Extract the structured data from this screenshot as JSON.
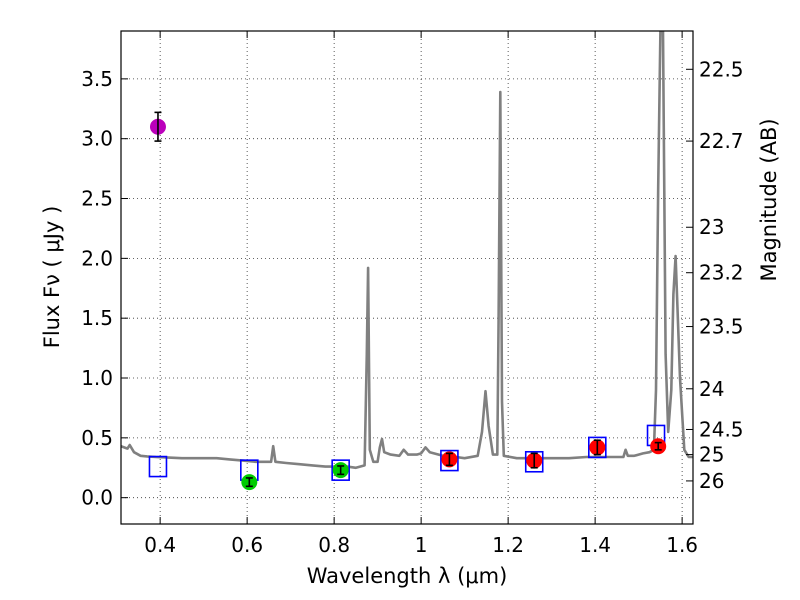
{
  "chart_data": {
    "type": "scatter",
    "title": "",
    "xlabel": "Wavelength  λ (μm)",
    "ylabel": "Flux  Fν  ( μJy )",
    "ylabel_right": "Magnitude (AB)",
    "xlim": [
      0.31,
      1.625
    ],
    "ylim": [
      -0.22,
      3.9
    ],
    "grid": true,
    "x_ticks": [
      0.4,
      0.6,
      0.8,
      1.0,
      1.2,
      1.4,
      1.6
    ],
    "x_tick_labels": [
      "0.4",
      "0.6",
      "0.8",
      "1",
      "1.2",
      "1.4",
      "1.6"
    ],
    "y_ticks": [
      0.0,
      0.5,
      1.0,
      1.5,
      2.0,
      2.5,
      3.0,
      3.5
    ],
    "y_tick_labels": [
      "0.0",
      "0.5",
      "1.0",
      "1.5",
      "2.0",
      "2.5",
      "3.0",
      "3.5"
    ],
    "right_ticks": [
      {
        "label": "22.5",
        "flux": 3.58
      },
      {
        "label": "22.7",
        "flux": 2.98
      },
      {
        "label": "23",
        "flux": 2.26
      },
      {
        "label": "23.2",
        "flux": 1.88
      },
      {
        "label": "23.5",
        "flux": 1.43
      },
      {
        "label": "24",
        "flux": 0.91
      },
      {
        "label": "24.5",
        "flux": 0.57
      },
      {
        "label": "25",
        "flux": 0.36
      },
      {
        "label": "26",
        "flux": 0.14
      }
    ],
    "series": [
      {
        "name": "observed photometry",
        "points": [
          {
            "x": 0.395,
            "y": 3.1,
            "err": 0.12,
            "color": "#bb00bb"
          },
          {
            "x": 0.605,
            "y": 0.13,
            "err": 0.035,
            "color": "#00cc00"
          },
          {
            "x": 0.815,
            "y": 0.23,
            "err": 0.035,
            "color": "#00cc00"
          },
          {
            "x": 1.065,
            "y": 0.32,
            "err": 0.05,
            "color": "#ff0000"
          },
          {
            "x": 1.26,
            "y": 0.31,
            "err": 0.06,
            "color": "#ff0000"
          },
          {
            "x": 1.405,
            "y": 0.42,
            "err": 0.06,
            "color": "#ff0000"
          },
          {
            "x": 1.545,
            "y": 0.43,
            "err": 0.03,
            "color": "#ff0000"
          }
        ]
      },
      {
        "name": "model photometry",
        "points": [
          {
            "x": 0.395,
            "y": 0.26
          },
          {
            "x": 0.605,
            "y": 0.23
          },
          {
            "x": 0.815,
            "y": 0.23
          },
          {
            "x": 1.065,
            "y": 0.31
          },
          {
            "x": 1.26,
            "y": 0.3
          },
          {
            "x": 1.405,
            "y": 0.42
          },
          {
            "x": 1.54,
            "y": 0.52
          }
        ]
      },
      {
        "name": "model spectrum",
        "color": "#808080",
        "points": [
          [
            0.31,
            0.43
          ],
          [
            0.325,
            0.41
          ],
          [
            0.33,
            0.44
          ],
          [
            0.34,
            0.38
          ],
          [
            0.355,
            0.35
          ],
          [
            0.37,
            0.345
          ],
          [
            0.39,
            0.34
          ],
          [
            0.42,
            0.335
          ],
          [
            0.45,
            0.33
          ],
          [
            0.48,
            0.33
          ],
          [
            0.5,
            0.33
          ],
          [
            0.53,
            0.33
          ],
          [
            0.56,
            0.32
          ],
          [
            0.59,
            0.31
          ],
          [
            0.62,
            0.3
          ],
          [
            0.65,
            0.3
          ],
          [
            0.655,
            0.3
          ],
          [
            0.66,
            0.43
          ],
          [
            0.665,
            0.3
          ],
          [
            0.69,
            0.29
          ],
          [
            0.72,
            0.28
          ],
          [
            0.75,
            0.27
          ],
          [
            0.78,
            0.26
          ],
          [
            0.8,
            0.26
          ],
          [
            0.83,
            0.26
          ],
          [
            0.85,
            0.25
          ],
          [
            0.87,
            0.27
          ],
          [
            0.875,
            1.2
          ],
          [
            0.878,
            1.92
          ],
          [
            0.882,
            0.4
          ],
          [
            0.89,
            0.3
          ],
          [
            0.9,
            0.3
          ],
          [
            0.905,
            0.42
          ],
          [
            0.91,
            0.49
          ],
          [
            0.915,
            0.38
          ],
          [
            0.93,
            0.36
          ],
          [
            0.95,
            0.35
          ],
          [
            0.96,
            0.4
          ],
          [
            0.97,
            0.36
          ],
          [
            0.99,
            0.36
          ],
          [
            1.0,
            0.37
          ],
          [
            1.01,
            0.42
          ],
          [
            1.02,
            0.38
          ],
          [
            1.05,
            0.35
          ],
          [
            1.08,
            0.34
          ],
          [
            1.1,
            0.33
          ],
          [
            1.13,
            0.35
          ],
          [
            1.14,
            0.55
          ],
          [
            1.148,
            0.89
          ],
          [
            1.155,
            0.6
          ],
          [
            1.165,
            0.36
          ],
          [
            1.175,
            0.36
          ],
          [
            1.178,
            1.5
          ],
          [
            1.182,
            3.39
          ],
          [
            1.186,
            0.8
          ],
          [
            1.19,
            0.35
          ],
          [
            1.22,
            0.33
          ],
          [
            1.25,
            0.33
          ],
          [
            1.3,
            0.33
          ],
          [
            1.34,
            0.33
          ],
          [
            1.38,
            0.34
          ],
          [
            1.42,
            0.34
          ],
          [
            1.45,
            0.34
          ],
          [
            1.465,
            0.34
          ],
          [
            1.47,
            0.4
          ],
          [
            1.475,
            0.35
          ],
          [
            1.49,
            0.35
          ],
          [
            1.5,
            0.36
          ],
          [
            1.51,
            0.37
          ],
          [
            1.525,
            0.38
          ],
          [
            1.535,
            0.4
          ],
          [
            1.54,
            0.9
          ],
          [
            1.545,
            2.6
          ],
          [
            1.55,
            3.9
          ],
          [
            1.556,
            3.9
          ],
          [
            1.562,
            1.2
          ],
          [
            1.568,
            0.55
          ],
          [
            1.575,
            0.9
          ],
          [
            1.58,
            1.7
          ],
          [
            1.585,
            2.02
          ],
          [
            1.595,
            1.0
          ],
          [
            1.605,
            0.4
          ],
          [
            1.615,
            0.34
          ],
          [
            1.625,
            0.34
          ]
        ]
      }
    ]
  }
}
